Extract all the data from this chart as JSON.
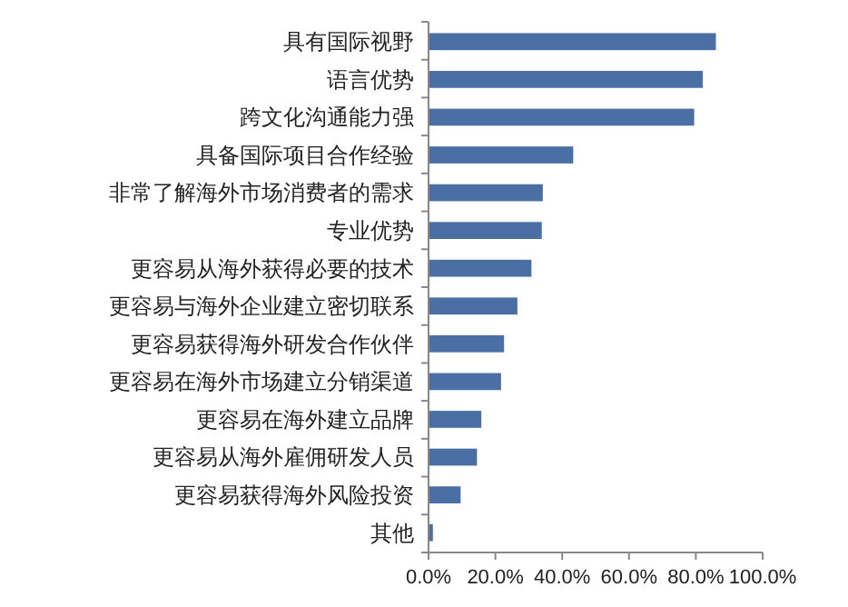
{
  "chart_data": {
    "type": "bar",
    "orientation": "horizontal",
    "categories": [
      "具有国际视野",
      "语言优势",
      "跨文化沟通能力强",
      "具备国际项目合作经验",
      "非常了解海外市场消费者的需求",
      "专业优势",
      "更容易从海外获得必要的技术",
      "更容易与海外企业建立密切联系",
      "更容易获得海外研发合作伙伴",
      "更容易在海外市场建立分销渠道",
      "更容易在海外建立品牌",
      "更容易从海外雇佣研发人员",
      "更容易获得海外风险投资",
      "其他"
    ],
    "values": [
      86.0,
      82.1,
      79.5,
      43.3,
      34.2,
      33.9,
      30.8,
      26.6,
      22.6,
      21.7,
      15.8,
      14.5,
      9.6,
      1.3
    ],
    "color": "#4a6fa5",
    "xlim": [
      0,
      100
    ],
    "xticks": [
      {
        "value": 0,
        "label": "0.0%"
      },
      {
        "value": 20,
        "label": "20.0%"
      },
      {
        "value": 40,
        "label": "40.0%"
      },
      {
        "value": 60,
        "label": "60.0%"
      },
      {
        "value": 80,
        "label": "80.0%"
      },
      {
        "value": 100,
        "label": "100.0%"
      }
    ],
    "grid": false
  }
}
